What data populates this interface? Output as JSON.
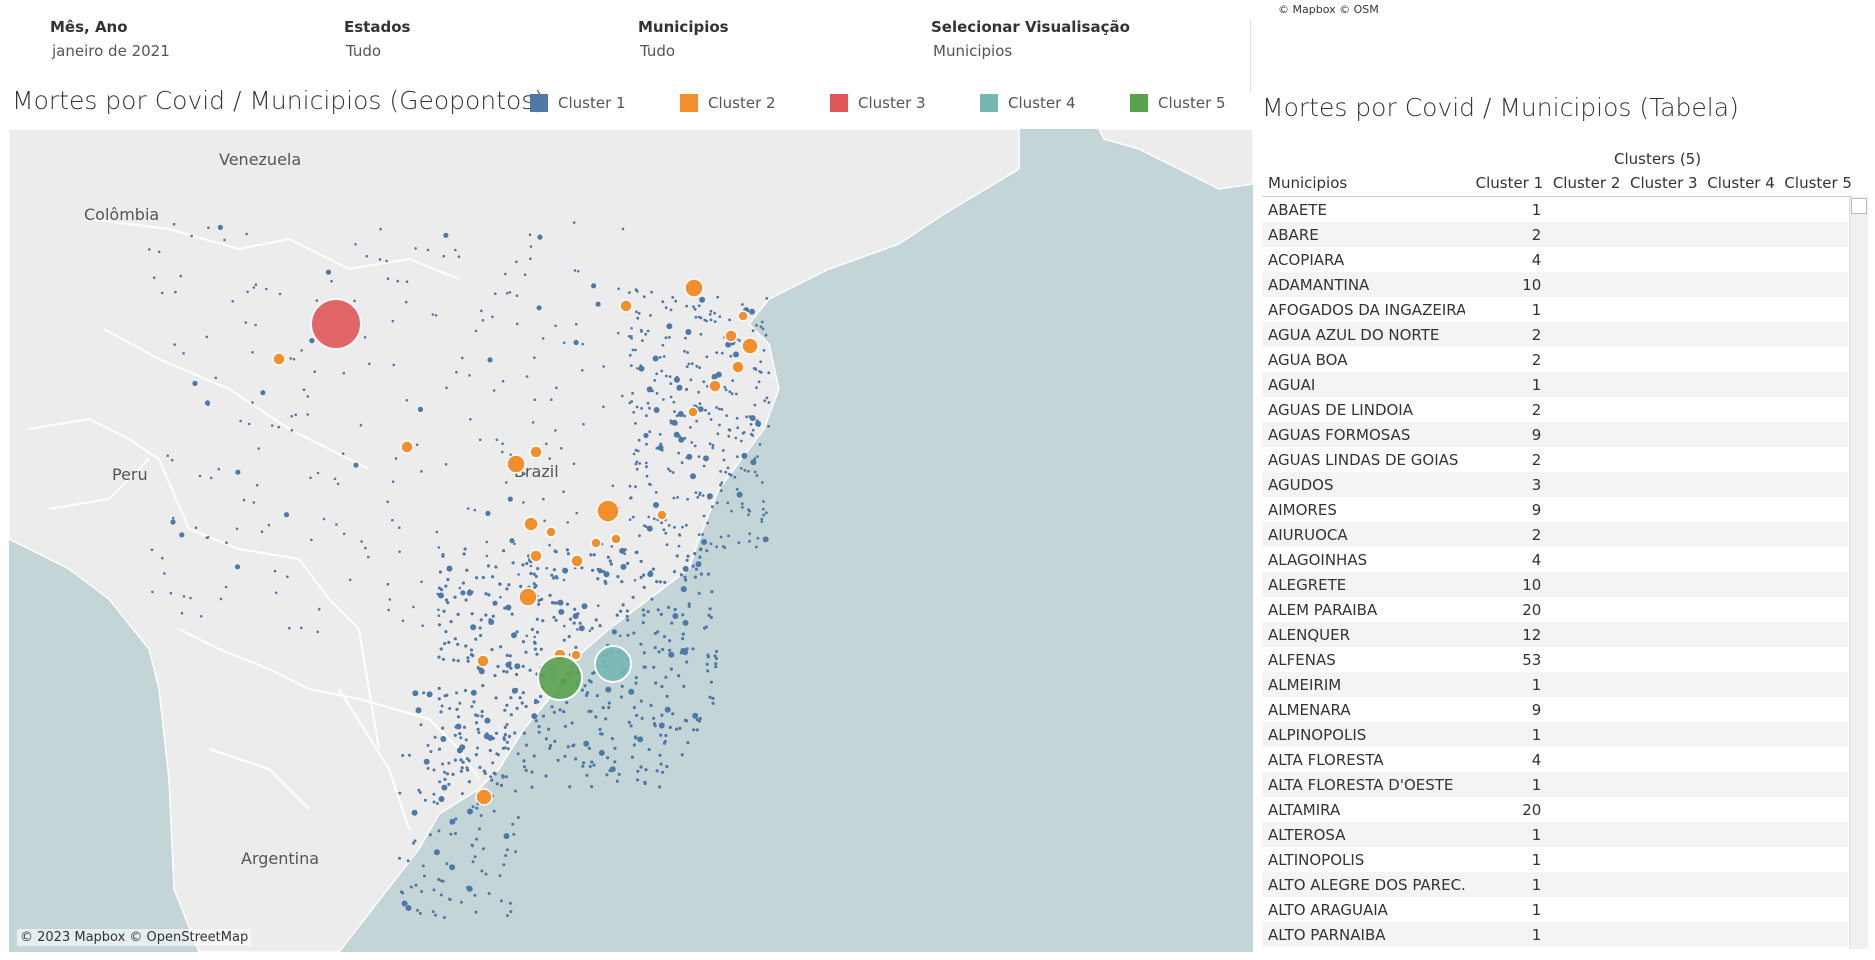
{
  "filters": [
    {
      "label": "Mês, Ano",
      "value": "janeiro de 2021"
    },
    {
      "label": "Estados",
      "value": "Tudo"
    },
    {
      "label": "Municipios",
      "value": "Tudo"
    },
    {
      "label": "Selecionar Visualisação",
      "value": "Municipios"
    }
  ],
  "top_attribution": "© Mapbox © OSM",
  "map": {
    "title": "Mortes por Covid / Municipios (Geopontos)",
    "attribution": "© 2023 Mapbox © OpenStreetMap",
    "country_labels": [
      "Venezuela",
      "Colômbia",
      "Peru",
      "Brazil",
      "Argentina"
    ],
    "ocean_color": "#c3d5d6",
    "land_color": "#ececec"
  },
  "legend": [
    {
      "label": "Cluster 1",
      "color": "#4e79a7"
    },
    {
      "label": "Cluster 2",
      "color": "#f28e2b"
    },
    {
      "label": "Cluster 3",
      "color": "#e15759"
    },
    {
      "label": "Cluster 4",
      "color": "#76b7b2"
    },
    {
      "label": "Cluster 5",
      "color": "#59a14f"
    }
  ],
  "table": {
    "title": "Mortes por Covid / Municipios (Tabela)",
    "group_header": "Clusters (5)",
    "columns": [
      "Municipios",
      "Cluster 1",
      "Cluster 2",
      "Cluster 3",
      "Cluster 4",
      "Cluster 5"
    ],
    "rows": [
      [
        "ABAETE",
        "1"
      ],
      [
        "ABARE",
        "2"
      ],
      [
        "ACOPIARA",
        "4"
      ],
      [
        "ADAMANTINA",
        "10"
      ],
      [
        "AFOGADOS DA INGAZEIRA",
        "1"
      ],
      [
        "AGUA AZUL DO NORTE",
        "2"
      ],
      [
        "AGUA BOA",
        "2"
      ],
      [
        "AGUAI",
        "1"
      ],
      [
        "AGUAS DE LINDOIA",
        "2"
      ],
      [
        "AGUAS FORMOSAS",
        "9"
      ],
      [
        "AGUAS LINDAS DE GOIAS",
        "2"
      ],
      [
        "AGUDOS",
        "3"
      ],
      [
        "AIMORES",
        "9"
      ],
      [
        "AIURUOCA",
        "2"
      ],
      [
        "ALAGOINHAS",
        "4"
      ],
      [
        "ALEGRETE",
        "10"
      ],
      [
        "ALEM PARAIBA",
        "20"
      ],
      [
        "ALENQUER",
        "12"
      ],
      [
        "ALFENAS",
        "53"
      ],
      [
        "ALMEIRIM",
        "1"
      ],
      [
        "ALMENARA",
        "9"
      ],
      [
        "ALPINOPOLIS",
        "1"
      ],
      [
        "ALTA FLORESTA",
        "4"
      ],
      [
        "ALTA FLORESTA D'OESTE",
        "1"
      ],
      [
        "ALTAMIRA",
        "20"
      ],
      [
        "ALTEROSA",
        "1"
      ],
      [
        "ALTINOPOLIS",
        "1"
      ],
      [
        "ALTO ALEGRE DOS PAREC..",
        "1"
      ],
      [
        "ALTO ARAGUAIA",
        "1"
      ],
      [
        "ALTO PARNAIBA",
        "1"
      ]
    ]
  }
}
